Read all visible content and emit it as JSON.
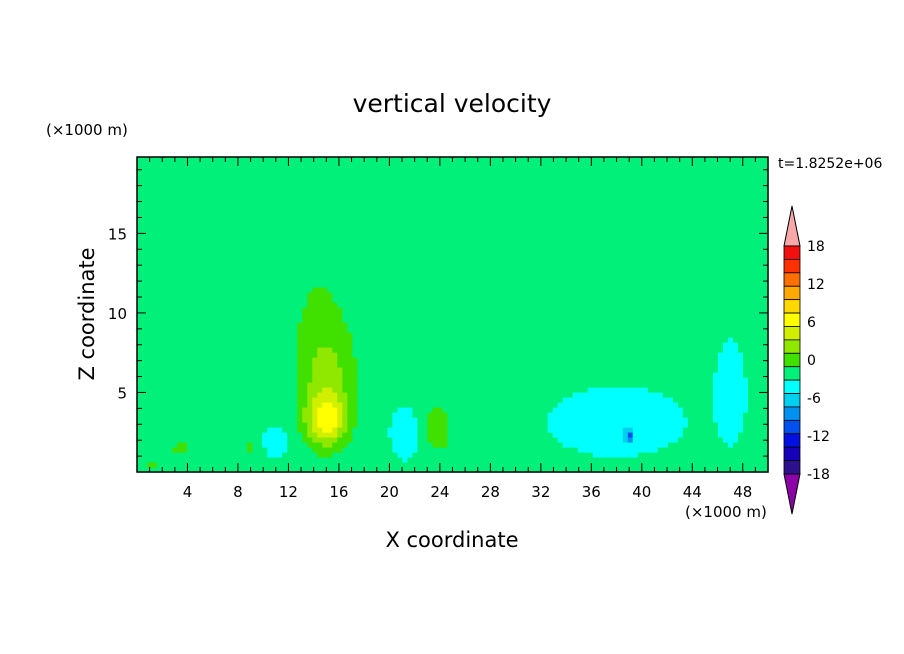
{
  "chart_data": {
    "type": "heatmap",
    "title": "vertical velocity",
    "xlabel": "X coordinate",
    "ylabel": "Z coordinate",
    "x_unit": "(×1000 m)",
    "y_unit": "(×1000 m)",
    "time_label": "t=1.8252e+06",
    "xlim": [
      0,
      50
    ],
    "ylim": [
      0,
      19.8
    ],
    "x_ticks": [
      4,
      8,
      12,
      16,
      20,
      24,
      28,
      32,
      36,
      40,
      44,
      48
    ],
    "y_ticks": [
      5,
      10,
      15
    ],
    "colorbar": {
      "tick_labels": [
        "18",
        "12",
        "6",
        "0",
        "-6",
        "-12",
        "-18"
      ],
      "tick_values": [
        18,
        12,
        6,
        0,
        -6,
        -12,
        -18
      ],
      "levels": [
        -21,
        -18,
        -15,
        -12,
        -9,
        -6,
        -3,
        0,
        3,
        6,
        9,
        12,
        15,
        18,
        21
      ],
      "colors": [
        "#8c00a8",
        "#2c108c",
        "#1800b8",
        "#0010e0",
        "#0050f0",
        "#0090f0",
        "#00d0f0",
        "#00ffff",
        "#00f07a",
        "#40e000",
        "#90e800",
        "#d0f000",
        "#ffff00",
        "#ffd800",
        "#ffa800",
        "#ff7000",
        "#ff3000",
        "#f01010",
        "#f8a8a8"
      ]
    },
    "background_value": 0.5,
    "features": [
      {
        "x": 15.0,
        "z": 3.2,
        "sx": 1.6,
        "sz": 1.6,
        "amp": 10.5
      },
      {
        "x": 15.0,
        "z": 5.5,
        "sx": 2.2,
        "sz": 3.2,
        "amp": 5.5
      },
      {
        "x": 14.8,
        "z": 8.5,
        "sx": 3.0,
        "sz": 4.0,
        "amp": 2.0
      },
      {
        "x": 23.8,
        "z": 2.8,
        "sx": 1.5,
        "sz": 2.2,
        "amp": 3.8
      },
      {
        "x": 3.5,
        "z": 1.5,
        "sx": 1.1,
        "sz": 0.8,
        "amp": 3.2
      },
      {
        "x": 9.0,
        "z": 1.5,
        "sx": 0.8,
        "sz": 1.0,
        "amp": 2.8
      },
      {
        "x": 1.2,
        "z": 0.6,
        "sx": 0.7,
        "sz": 0.5,
        "amp": 3.0
      },
      {
        "x": 14.0,
        "z": 14.0,
        "sx": 3.0,
        "sz": 5.5,
        "amp": 1.6
      },
      {
        "x": 8.0,
        "z": 16.0,
        "sx": 2.0,
        "sz": 1.0,
        "amp": 1.4
      },
      {
        "x": 33.0,
        "z": 13.0,
        "sx": 3.0,
        "sz": 2.0,
        "amp": 1.3
      },
      {
        "x": 42.0,
        "z": 15.5,
        "sx": 4.0,
        "sz": 1.4,
        "amp": 1.4
      },
      {
        "x": 29.0,
        "z": 5.0,
        "sx": 2.0,
        "sz": 3.0,
        "amp": 1.2
      },
      {
        "x": 38.0,
        "z": 3.2,
        "sx": 4.0,
        "sz": 1.6,
        "amp": -3.4
      },
      {
        "x": 47.0,
        "z": 5.0,
        "sx": 1.0,
        "sz": 2.6,
        "amp": -2.6
      },
      {
        "x": 39.0,
        "z": 2.3,
        "sx": 0.3,
        "sz": 0.4,
        "amp": -8.0
      },
      {
        "x": 11.0,
        "z": 2.0,
        "sx": 1.0,
        "sz": 0.8,
        "amp": -2.8
      },
      {
        "x": 21.5,
        "z": 2.5,
        "sx": 1.2,
        "sz": 1.5,
        "amp": -2.4
      }
    ]
  }
}
